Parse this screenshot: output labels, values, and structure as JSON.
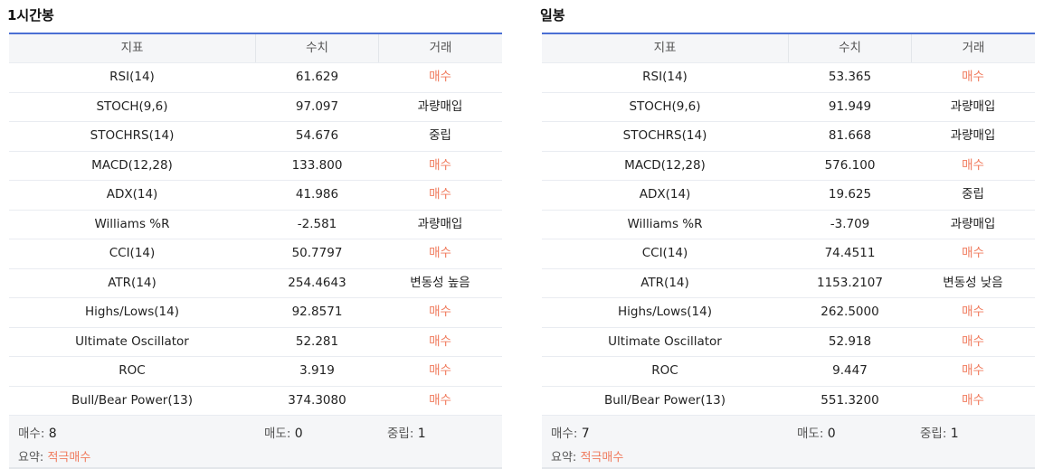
{
  "panels": [
    {
      "title": "1시간봉",
      "headers": [
        "지표",
        "수치",
        "거래"
      ],
      "rows": [
        {
          "indicator": "RSI(14)",
          "value": "61.629",
          "signal": "매수",
          "type": "buy"
        },
        {
          "indicator": "STOCH(9,6)",
          "value": "97.097",
          "signal": "과량매입",
          "type": "neutral"
        },
        {
          "indicator": "STOCHRS(14)",
          "value": "54.676",
          "signal": "중립",
          "type": "neutral"
        },
        {
          "indicator": "MACD(12,28)",
          "value": "133.800",
          "signal": "매수",
          "type": "buy"
        },
        {
          "indicator": "ADX(14)",
          "value": "41.986",
          "signal": "매수",
          "type": "buy"
        },
        {
          "indicator": "Williams %R",
          "value": "-2.581",
          "signal": "과량매입",
          "type": "neutral"
        },
        {
          "indicator": "CCI(14)",
          "value": "50.7797",
          "signal": "매수",
          "type": "buy"
        },
        {
          "indicator": "ATR(14)",
          "value": "254.4643",
          "signal": "변동성 높음",
          "type": "neutral"
        },
        {
          "indicator": "Highs/Lows(14)",
          "value": "92.8571",
          "signal": "매수",
          "type": "buy"
        },
        {
          "indicator": "Ultimate Oscillator",
          "value": "52.281",
          "signal": "매수",
          "type": "buy"
        },
        {
          "indicator": "ROC",
          "value": "3.919",
          "signal": "매수",
          "type": "buy"
        },
        {
          "indicator": "Bull/Bear Power(13)",
          "value": "374.3080",
          "signal": "매수",
          "type": "buy"
        }
      ],
      "summary": {
        "buy_label": "매수:",
        "buy_count": "8",
        "sell_label": "매도:",
        "sell_count": "0",
        "neutral_label": "중립:",
        "neutral_count": "1",
        "verdict_label": "요약:",
        "verdict": "적극매수"
      }
    },
    {
      "title": "일봉",
      "headers": [
        "지표",
        "수치",
        "거래"
      ],
      "rows": [
        {
          "indicator": "RSI(14)",
          "value": "53.365",
          "signal": "매수",
          "type": "buy"
        },
        {
          "indicator": "STOCH(9,6)",
          "value": "91.949",
          "signal": "과량매입",
          "type": "neutral"
        },
        {
          "indicator": "STOCHRS(14)",
          "value": "81.668",
          "signal": "과량매입",
          "type": "neutral"
        },
        {
          "indicator": "MACD(12,28)",
          "value": "576.100",
          "signal": "매수",
          "type": "buy"
        },
        {
          "indicator": "ADX(14)",
          "value": "19.625",
          "signal": "중립",
          "type": "neutral"
        },
        {
          "indicator": "Williams %R",
          "value": "-3.709",
          "signal": "과량매입",
          "type": "neutral"
        },
        {
          "indicator": "CCI(14)",
          "value": "74.4511",
          "signal": "매수",
          "type": "buy"
        },
        {
          "indicator": "ATR(14)",
          "value": "1153.2107",
          "signal": "변동성 낮음",
          "type": "neutral"
        },
        {
          "indicator": "Highs/Lows(14)",
          "value": "262.5000",
          "signal": "매수",
          "type": "buy"
        },
        {
          "indicator": "Ultimate Oscillator",
          "value": "52.918",
          "signal": "매수",
          "type": "buy"
        },
        {
          "indicator": "ROC",
          "value": "9.447",
          "signal": "매수",
          "type": "buy"
        },
        {
          "indicator": "Bull/Bear Power(13)",
          "value": "551.3200",
          "signal": "매수",
          "type": "buy"
        }
      ],
      "summary": {
        "buy_label": "매수:",
        "buy_count": "7",
        "sell_label": "매도:",
        "sell_count": "0",
        "neutral_label": "중립:",
        "neutral_count": "1",
        "verdict_label": "요약:",
        "verdict": "적극매수"
      }
    }
  ],
  "colors": {
    "buy": "#f07a5c",
    "accent_border": "#4a6fd4",
    "header_bg": "#f5f6f8"
  }
}
